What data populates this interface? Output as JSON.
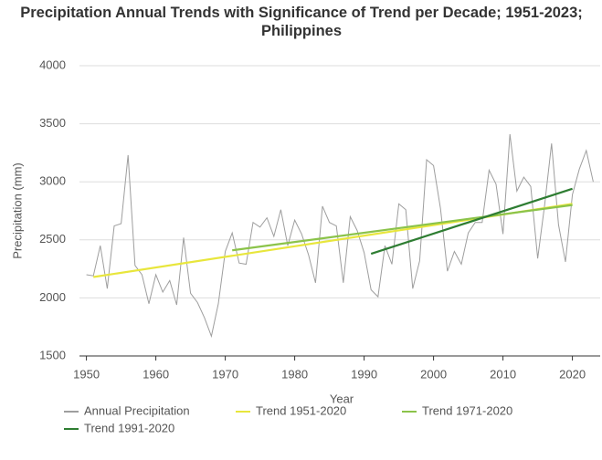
{
  "chart_data": {
    "type": "line",
    "title": "Precipitation Annual Trends with Significance of Trend per Decade; 1951-2023; Philippines",
    "xlabel": "Year",
    "ylabel": "Precipitation (mm)",
    "xlim": [
      1949,
      2024
    ],
    "xticks": [
      1950,
      1960,
      1970,
      1980,
      1990,
      2000,
      2010,
      2020
    ],
    "ylim": [
      1500,
      4000
    ],
    "yticks": [
      1500,
      2000,
      2500,
      3000,
      3500,
      4000
    ],
    "grid": true,
    "series": [
      {
        "name": "Annual Precipitation",
        "color": "#9e9e9e",
        "x": [
          1950,
          1951,
          1952,
          1953,
          1954,
          1955,
          1956,
          1957,
          1958,
          1959,
          1960,
          1961,
          1962,
          1963,
          1964,
          1965,
          1966,
          1967,
          1968,
          1969,
          1970,
          1971,
          1972,
          1973,
          1974,
          1975,
          1976,
          1977,
          1978,
          1979,
          1980,
          1981,
          1982,
          1983,
          1984,
          1985,
          1986,
          1987,
          1988,
          1989,
          1990,
          1991,
          1992,
          1993,
          1994,
          1995,
          1996,
          1997,
          1998,
          1999,
          2000,
          2001,
          2002,
          2003,
          2004,
          2005,
          2006,
          2007,
          2008,
          2009,
          2010,
          2011,
          2012,
          2013,
          2014,
          2015,
          2016,
          2017,
          2018,
          2019,
          2020,
          2021,
          2022,
          2023
        ],
        "values": [
          2200,
          2190,
          2450,
          2080,
          2620,
          2640,
          3230,
          2280,
          2200,
          1950,
          2200,
          2050,
          2150,
          1940,
          2520,
          2040,
          1960,
          1830,
          1670,
          1950,
          2400,
          2560,
          2300,
          2290,
          2650,
          2610,
          2690,
          2530,
          2760,
          2450,
          2670,
          2550,
          2370,
          2130,
          2790,
          2650,
          2620,
          2130,
          2700,
          2580,
          2390,
          2070,
          2010,
          2450,
          2290,
          2810,
          2760,
          2080,
          2320,
          3190,
          3140,
          2770,
          2230,
          2400,
          2290,
          2560,
          2650,
          2650,
          3100,
          2980,
          2550,
          3410,
          2920,
          3040,
          2960,
          2340,
          2800,
          3330,
          2630,
          2310,
          2890,
          3110,
          3270,
          3000
        ]
      },
      {
        "name": "Trend 1951-2020",
        "color": "#e8e63c",
        "x": [
          1951,
          2020
        ],
        "values": [
          2180,
          2810
        ]
      },
      {
        "name": "Trend 1971-2020",
        "color": "#8bc34a",
        "x": [
          1971,
          2020
        ],
        "values": [
          2410,
          2800
        ]
      },
      {
        "name": "Trend 1991-2020",
        "color": "#2e7d32",
        "x": [
          1991,
          2020
        ],
        "values": [
          2380,
          2940
        ]
      }
    ]
  }
}
